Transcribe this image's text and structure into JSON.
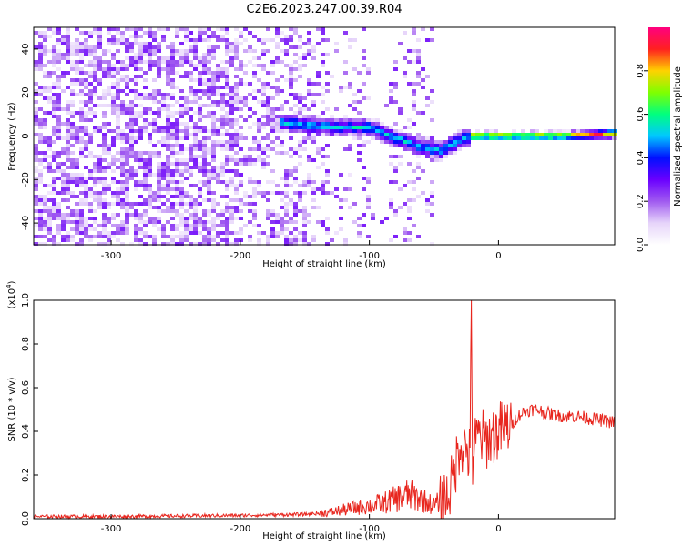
{
  "title": "C2E6.2023.247.00.39.R04",
  "colors": {
    "snr_line": "#e8261e",
    "colormap": [
      "#ffffff",
      "#e6d4fa",
      "#a05af0",
      "#6a00ff",
      "#0010ff",
      "#00c8ff",
      "#00ff7f",
      "#7fff00",
      "#ffd200",
      "#ff2020",
      "#ff007f"
    ]
  },
  "chart_data": [
    {
      "type": "heatmap",
      "name": "spectrogram",
      "xlabel": "Height of straight line (km)",
      "ylabel": "Frequency (Hz)",
      "xlim": [
        -360,
        90
      ],
      "ylim": [
        -50,
        50
      ],
      "xticks": [
        -300,
        -200,
        -100,
        0
      ],
      "yticks": [
        -40,
        -20,
        0,
        20,
        40
      ],
      "noise_edge_x": -50,
      "signal_track": [
        {
          "x": -180,
          "y": 7
        },
        {
          "x": -150,
          "y": 5
        },
        {
          "x": -120,
          "y": 4
        },
        {
          "x": -100,
          "y": 4
        },
        {
          "x": -80,
          "y": -1
        },
        {
          "x": -60,
          "y": -5
        },
        {
          "x": -45,
          "y": -7
        },
        {
          "x": -30,
          "y": -2
        },
        {
          "x": -20,
          "y": 0
        },
        {
          "x": 0,
          "y": 0
        },
        {
          "x": 50,
          "y": 0
        },
        {
          "x": 90,
          "y": 1
        }
      ],
      "colorbar": {
        "label": "Normalized spectral amplitude",
        "ticks": [
          "0.0",
          "0.2",
          "0.4",
          "0.6",
          "0.8"
        ],
        "range": [
          0,
          1
        ]
      }
    },
    {
      "type": "line",
      "name": "snr",
      "xlabel": "Height of straight line (km)",
      "ylabel": "SNR (10 * v/v)",
      "scale_label": "(x10^4)",
      "scale_base": "(x10",
      "scale_exp": "4",
      "scale_close": ")",
      "xlim": [
        -360,
        90
      ],
      "ylim": [
        0,
        1.0
      ],
      "xticks": [
        -300,
        -200,
        -100,
        0
      ],
      "yticks": [
        "0.0",
        "0.2",
        "0.4",
        "0.6",
        "0.8",
        "1.0"
      ],
      "series": [
        {
          "x": [
            -360,
            -300,
            -200,
            -150,
            -130,
            -120,
            -110,
            -100,
            -90,
            -80,
            -70,
            -60,
            -50,
            -40,
            -35,
            -30,
            -25,
            -22,
            -21,
            -20,
            -19,
            -15,
            -10,
            -5,
            0,
            5,
            10,
            15,
            20,
            25,
            30,
            40,
            50,
            60,
            70,
            80,
            90
          ],
          "values": [
            0.01,
            0.01,
            0.015,
            0.02,
            0.03,
            0.04,
            0.05,
            0.06,
            0.07,
            0.09,
            0.11,
            0.09,
            0.06,
            0.1,
            0.18,
            0.35,
            0.32,
            0.28,
            1.0,
            0.25,
            0.33,
            0.38,
            0.36,
            0.38,
            0.4,
            0.42,
            0.43,
            0.47,
            0.49,
            0.5,
            0.5,
            0.48,
            0.47,
            0.47,
            0.46,
            0.45,
            0.44
          ]
        }
      ]
    }
  ]
}
